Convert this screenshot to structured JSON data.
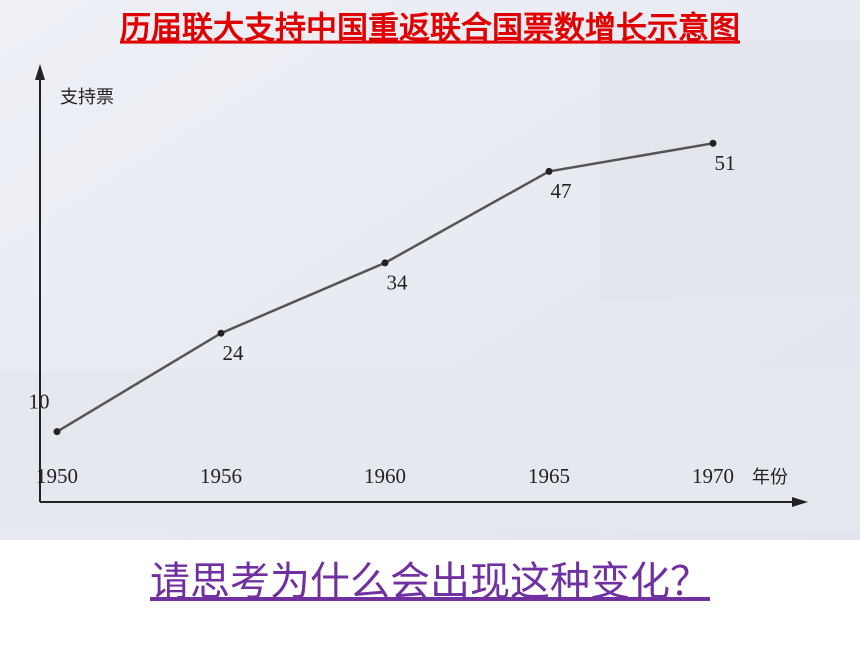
{
  "chart_data": {
    "type": "line",
    "title": "历届联大支持中国重返联合国票数增长示意图",
    "y_label": "支持票",
    "x_label": "年份",
    "categories": [
      "1950",
      "1956",
      "1960",
      "1965",
      "1970"
    ],
    "values": [
      10,
      24,
      34,
      47,
      51
    ],
    "color": "#555555",
    "ylim": [
      0,
      60
    ]
  },
  "question": "请思考为什么会出现这种变化？"
}
